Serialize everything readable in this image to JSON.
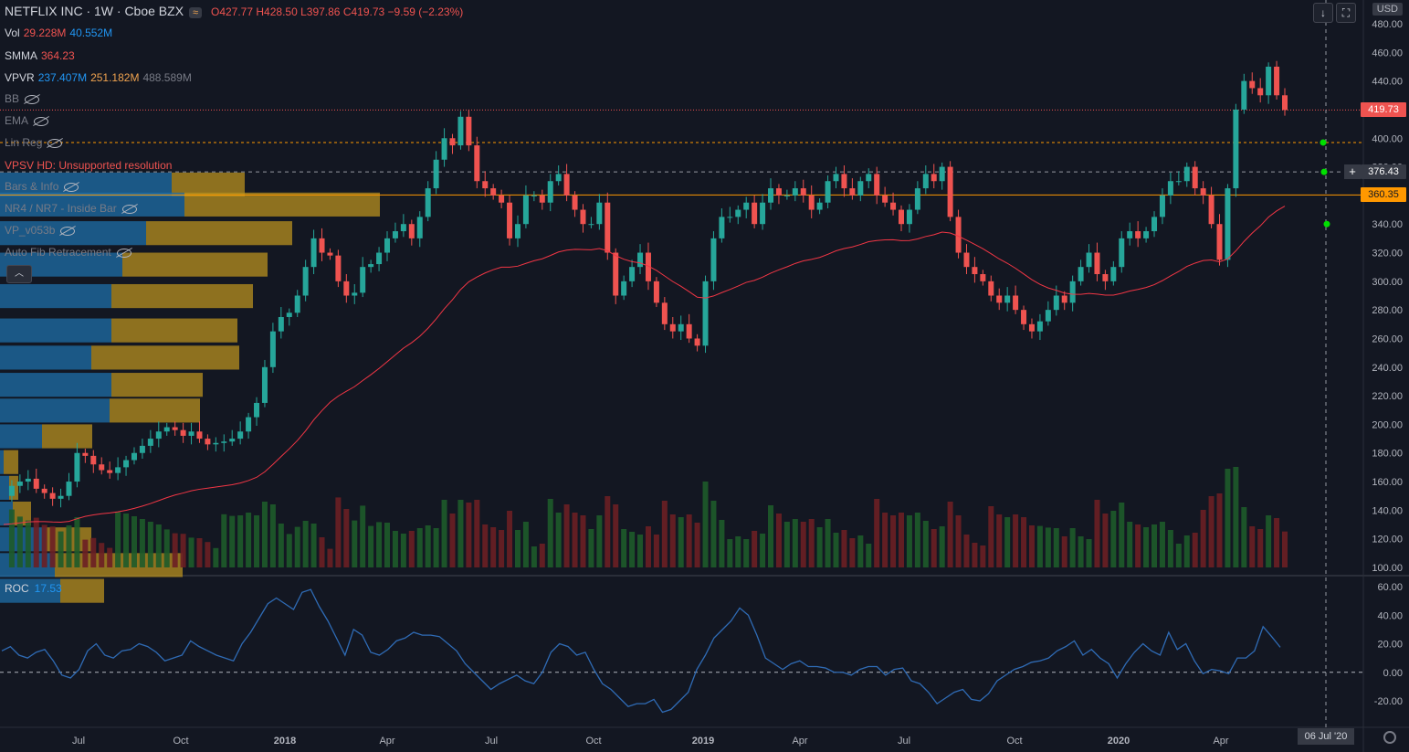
{
  "header": {
    "symbol": "NETFLIX INC · 1W · Cboe BZX",
    "pill": "≈",
    "open": "O427.77",
    "high": "H428.50",
    "low": "L397.86",
    "close": "C419.73",
    "change": "−9.59 (−2.23%)"
  },
  "currency": "USD",
  "legend": {
    "vol": {
      "name": "Vol",
      "v1": "29.228M",
      "v2": "40.552M"
    },
    "smma": {
      "name": "SMMA",
      "v1": "364.23"
    },
    "vpvr": {
      "name": "VPVR",
      "v1": "237.407M",
      "v2": "251.182M",
      "v3": "488.589M"
    },
    "hidden": [
      "BB",
      "EMA",
      "Lin Reg"
    ],
    "vpsv": "VPSV HD: Unsupported resolution",
    "hidden2": [
      "Bars & Info",
      "NR4 / NR7 - Inside Bar",
      "VP_v053b",
      "Auto Fib Retracement"
    ]
  },
  "price_labels": {
    "last": "419.73",
    "cross": "376.43",
    "smma": "360.35"
  },
  "roc": {
    "name": "ROC",
    "value": "17.53"
  },
  "crosshair_date": "06 Jul '20",
  "colors": {
    "up": "#26a69a",
    "down": "#ef5350",
    "bg": "#131722",
    "smma": "#f23645",
    "vp_up": "#1f6fa8",
    "vp_down": "#b8901f",
    "roc": "#2962ff"
  },
  "chart_data": {
    "type": "candlestick",
    "interval": "1W",
    "price_axis": {
      "min": 100,
      "max": 480,
      "ticks": [
        480,
        460,
        440,
        420,
        400,
        380,
        360,
        340,
        320,
        300,
        280,
        260,
        240,
        220,
        200,
        180,
        160,
        140,
        120,
        100
      ]
    },
    "roc_axis": {
      "min": -20,
      "max": 60,
      "ticks": [
        60,
        40,
        20,
        0,
        -20
      ]
    },
    "time_labels": [
      "Jul",
      "Oct",
      "2018",
      "Apr",
      "Jul",
      "Oct",
      "2019",
      "Apr",
      "Jul",
      "Oct",
      "2020",
      "Apr"
    ],
    "close": [
      150,
      157,
      160,
      162,
      155,
      152,
      148,
      150,
      160,
      180,
      178,
      172,
      168,
      166,
      170,
      175,
      180,
      185,
      190,
      195,
      198,
      196,
      192,
      195,
      190,
      186,
      187,
      188,
      190,
      195,
      205,
      215,
      240,
      265,
      275,
      278,
      290,
      310,
      330,
      320,
      318,
      300,
      290,
      292,
      310,
      312,
      320,
      330,
      335,
      340,
      330,
      345,
      365,
      385,
      400,
      395,
      415,
      395,
      370,
      365,
      360,
      355,
      330,
      340,
      360,
      360,
      355,
      370,
      375,
      360,
      350,
      340,
      340,
      355,
      320,
      290,
      300,
      310,
      320,
      300,
      285,
      270,
      265,
      270,
      260,
      255,
      300,
      330,
      345,
      345,
      350,
      355,
      340,
      355,
      365,
      360,
      360,
      365,
      360,
      350,
      355,
      370,
      375,
      365,
      360,
      370,
      375,
      360,
      355,
      350,
      340,
      350,
      365,
      375,
      370,
      380,
      345,
      320,
      310,
      305,
      300,
      290,
      285,
      290,
      280,
      270,
      265,
      272,
      280,
      290,
      285,
      300,
      310,
      320,
      305,
      300,
      310,
      330,
      335,
      330,
      335,
      345,
      360,
      370,
      370,
      380,
      365,
      360,
      340,
      315,
      365,
      420,
      440,
      435,
      430,
      450,
      430,
      419.73
    ],
    "roc": [
      15,
      18,
      12,
      10,
      14,
      16,
      8,
      -2,
      -4,
      2,
      15,
      20,
      12,
      10,
      15,
      16,
      20,
      18,
      14,
      8,
      10,
      12,
      22,
      18,
      15,
      12,
      10,
      8,
      20,
      28,
      38,
      48,
      52,
      48,
      44,
      56,
      58,
      46,
      36,
      24,
      12,
      30,
      26,
      14,
      12,
      16,
      22,
      24,
      28,
      26,
      26,
      25,
      20,
      15,
      6,
      0,
      -6,
      -12,
      -8,
      -5,
      -2,
      -6,
      -8,
      0,
      14,
      20,
      18,
      12,
      14,
      2,
      -8,
      -12,
      -18,
      -24,
      -22,
      -22,
      -19,
      -28,
      -26,
      -20,
      -14,
      2,
      12,
      24,
      30,
      36,
      45,
      40,
      26,
      10,
      6,
      2,
      6,
      8,
      4,
      4,
      3,
      0,
      0,
      -2,
      2,
      4,
      4,
      -2,
      2,
      3,
      -6,
      -8,
      -14,
      -22,
      -18,
      -14,
      -12,
      -19,
      -20,
      -15,
      -6,
      -2,
      2,
      4,
      7,
      8,
      10,
      15,
      18,
      22,
      12,
      16,
      10,
      6,
      -4,
      6,
      14,
      20,
      15,
      12,
      28,
      16,
      20,
      8,
      -1,
      2,
      1,
      -1,
      10,
      10,
      15,
      32,
      25,
      17.53
    ]
  }
}
